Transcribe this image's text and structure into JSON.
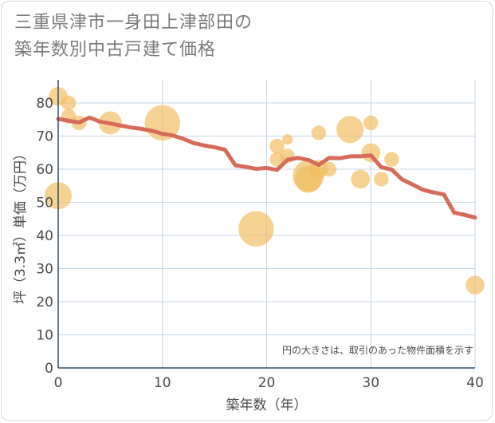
{
  "title_lines": [
    "三重県津市一身田上津部田の",
    "築年数別中古戸建て価格"
  ],
  "chart_data": {
    "type": "scatter+line",
    "title": "三重県津市一身田上津部田の築年数別中古戸建て価格",
    "xlabel": "築年数（年）",
    "ylabel": "坪（3.3㎡）単価（万円）",
    "xlim": [
      0,
      40
    ],
    "ylim": [
      0,
      87
    ],
    "xticks": [
      0,
      10,
      20,
      30,
      40
    ],
    "yticks": [
      0,
      10,
      20,
      30,
      40,
      50,
      60,
      70,
      80
    ],
    "grid": true,
    "annotation": "円の大きさは、取引のあった物件面積を示す",
    "colors": {
      "bubble": "#f2bc5e",
      "line": "#d66b5a",
      "grid": "#c5d6e6",
      "axis": "#2f4f6f"
    },
    "bubbles": [
      {
        "x": 0,
        "y": 82,
        "size": 3
      },
      {
        "x": 1,
        "y": 80,
        "size": 2
      },
      {
        "x": 1,
        "y": 76,
        "size": 2
      },
      {
        "x": 2,
        "y": 74,
        "size": 2
      },
      {
        "x": 0,
        "y": 52,
        "size": 5
      },
      {
        "x": 5,
        "y": 74,
        "size": 4
      },
      {
        "x": 10,
        "y": 74,
        "size": 7
      },
      {
        "x": 19,
        "y": 42,
        "size": 7
      },
      {
        "x": 21,
        "y": 67,
        "size": 2
      },
      {
        "x": 21,
        "y": 63,
        "size": 2
      },
      {
        "x": 22,
        "y": 69,
        "size": 1
      },
      {
        "x": 22,
        "y": 64,
        "size": 2
      },
      {
        "x": 24,
        "y": 58,
        "size": 6
      },
      {
        "x": 24,
        "y": 57,
        "size": 5
      },
      {
        "x": 25,
        "y": 71,
        "size": 2
      },
      {
        "x": 25,
        "y": 60,
        "size": 3
      },
      {
        "x": 26,
        "y": 60,
        "size": 2
      },
      {
        "x": 28,
        "y": 72,
        "size": 5
      },
      {
        "x": 29,
        "y": 57,
        "size": 3
      },
      {
        "x": 30,
        "y": 74,
        "size": 2
      },
      {
        "x": 30,
        "y": 65,
        "size": 3
      },
      {
        "x": 31,
        "y": 57,
        "size": 2
      },
      {
        "x": 32,
        "y": 63,
        "size": 2
      },
      {
        "x": 40,
        "y": 25,
        "size": 3
      }
    ],
    "trend": {
      "x": [
        0,
        2,
        3,
        4,
        6,
        7,
        8,
        9,
        10,
        11,
        12,
        13,
        14,
        15,
        16,
        17,
        18,
        19,
        20,
        21,
        22,
        23,
        24,
        25,
        26,
        27,
        28,
        29,
        30,
        31,
        32,
        33,
        34,
        35,
        36,
        37,
        38,
        39,
        40
      ],
      "y": [
        75.2,
        74.1,
        75.6,
        74.4,
        73.2,
        72.6,
        72.2,
        71.6,
        70.7,
        70.2,
        69.2,
        67.9,
        67.2,
        66.6,
        65.9,
        61.2,
        60.7,
        60.1,
        60.4,
        59.8,
        62.9,
        63.4,
        62.8,
        61.3,
        63.4,
        63.3,
        63.9,
        63.9,
        64.2,
        60.6,
        59.9,
        56.9,
        55.4,
        53.8,
        53.0,
        52.4,
        46.9,
        46.2,
        45.4
      ]
    }
  }
}
